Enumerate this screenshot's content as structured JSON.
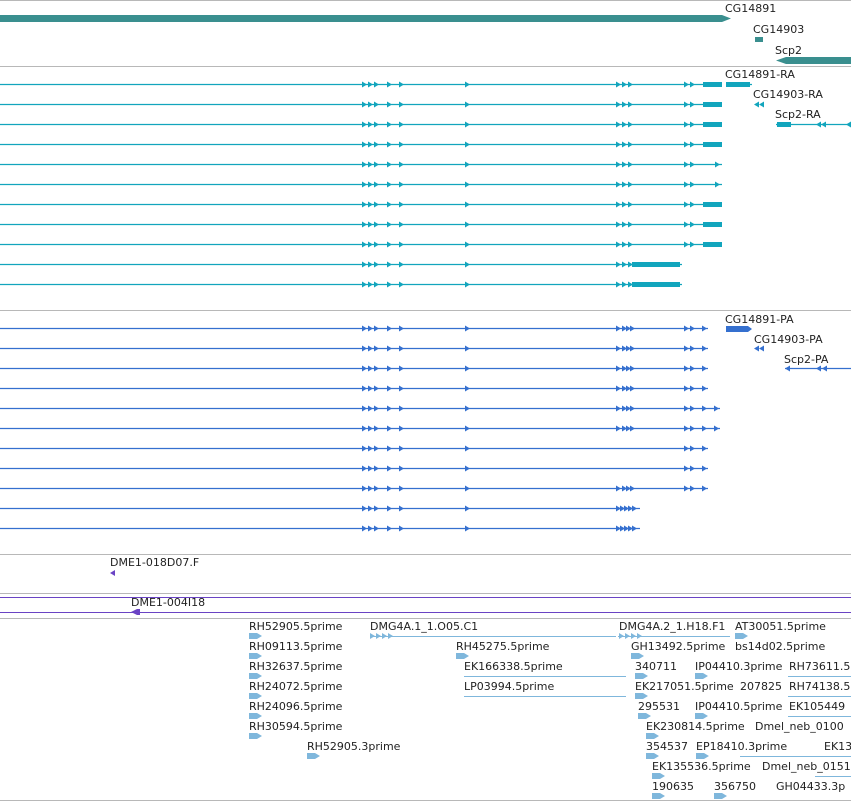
{
  "colors": {
    "gene": "#3a8f8f",
    "transcript": "#12a5bd",
    "protein": "#3570cf",
    "clone": "#6a43c4",
    "est": "#7fb7dc",
    "separator": "#b8b8b8"
  },
  "tracks": {
    "genes": [
      {
        "label": "CG14891"
      },
      {
        "label": "CG14903"
      },
      {
        "label": "Scp2"
      }
    ],
    "transcripts": [
      {
        "label": "CG14891-RA"
      },
      {
        "label": "CG14903-RA"
      },
      {
        "label": "Scp2-RA"
      }
    ],
    "proteins": [
      {
        "label": "CG14891-PA"
      },
      {
        "label": "CG14903-PA"
      },
      {
        "label": "Scp2-PA"
      }
    ],
    "clones": [
      {
        "label": "DME1-018D07.F"
      },
      {
        "label": "DME1-004I18"
      }
    ],
    "ests": [
      {
        "label": "RH52905.5prime"
      },
      {
        "label": "DMG4A.1_1.O05.C1"
      },
      {
        "label": "DMG4A.2_1.H18.F1"
      },
      {
        "label": "AT30051.5prime"
      },
      {
        "label": "RH09113.5prime"
      },
      {
        "label": "RH45275.5prime"
      },
      {
        "label": "GH13492.5prime"
      },
      {
        "label": "bs14d02.5prime"
      },
      {
        "label": "RH32637.5prime"
      },
      {
        "label": "EK166338.5prime"
      },
      {
        "label": "340711"
      },
      {
        "label": "IP04410.3prime"
      },
      {
        "label": "RH73611.5"
      },
      {
        "label": "RH24072.5prime"
      },
      {
        "label": "LP03994.5prime"
      },
      {
        "label": "EK217051.5prime"
      },
      {
        "label": "207825"
      },
      {
        "label": "RH74138.5"
      },
      {
        "label": "RH24096.5prime"
      },
      {
        "label": "295531"
      },
      {
        "label": "IP04410.5prime"
      },
      {
        "label": "EK105449"
      },
      {
        "label": "RH30594.5prime"
      },
      {
        "label": "EK230814.5prime"
      },
      {
        "label": "Dmel_neb_0100"
      },
      {
        "label": "RH52905.3prime"
      },
      {
        "label": "354537"
      },
      {
        "label": "EP18410.3prime"
      },
      {
        "label": "EK13"
      },
      {
        "label": "EK135536.5prime"
      },
      {
        "label": "Dmel_neb_0151"
      },
      {
        "label": "190635"
      },
      {
        "label": "356750"
      },
      {
        "label": "GH04433.3p"
      }
    ]
  }
}
